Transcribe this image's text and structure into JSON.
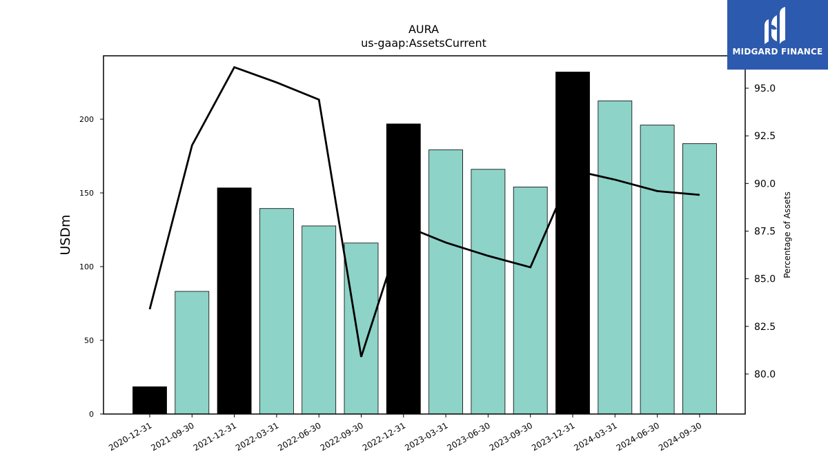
{
  "chart_data": {
    "type": "bar",
    "title": "AURA",
    "subtitle": "us-gaap:AssetsCurrent",
    "ylabel": "USDm",
    "y2label": "Percentage of Assets",
    "ylim": [
      0,
      243
    ],
    "y2lim": [
      77.9,
      96.7
    ],
    "yticks": [
      0,
      50,
      100,
      150,
      200
    ],
    "y2ticks": [
      "80.0",
      "82.5",
      "85.0",
      "87.5",
      "90.0",
      "92.5",
      "95.0"
    ],
    "categories": [
      "2020-12-31",
      "2021-09-30",
      "2021-12-31",
      "2022-03-31",
      "2022-06-30",
      "2022-09-30",
      "2022-12-31",
      "2023-03-31",
      "2023-06-30",
      "2023-09-30",
      "2023-12-31",
      "2024-03-31",
      "2024-06-30",
      "2024-09-30"
    ],
    "series": [
      {
        "type": "bar",
        "values": [
          18.5,
          83.2,
          153.4,
          139.4,
          127.6,
          116.0,
          196.8,
          179.2,
          166.0,
          154.0,
          232.0,
          212.4,
          196.0,
          183.4
        ]
      },
      {
        "type": "line",
        "axis": "right",
        "values": [
          83.4,
          92.0,
          96.1,
          95.3,
          94.4,
          80.9,
          87.8,
          86.9,
          86.2,
          85.6,
          90.7,
          90.2,
          89.6,
          89.4
        ]
      }
    ],
    "bar_colors": [
      "#000000",
      "#8dd3c7",
      "#000000",
      "#8dd3c7",
      "#8dd3c7",
      "#8dd3c7",
      "#000000",
      "#8dd3c7",
      "#8dd3c7",
      "#8dd3c7",
      "#000000",
      "#8dd3c7",
      "#8dd3c7",
      "#8dd3c7"
    ],
    "line_color": "#000000",
    "grid": false
  },
  "logo": {
    "text": "MIDGARD FINANCE",
    "background": "#2c5aae"
  }
}
